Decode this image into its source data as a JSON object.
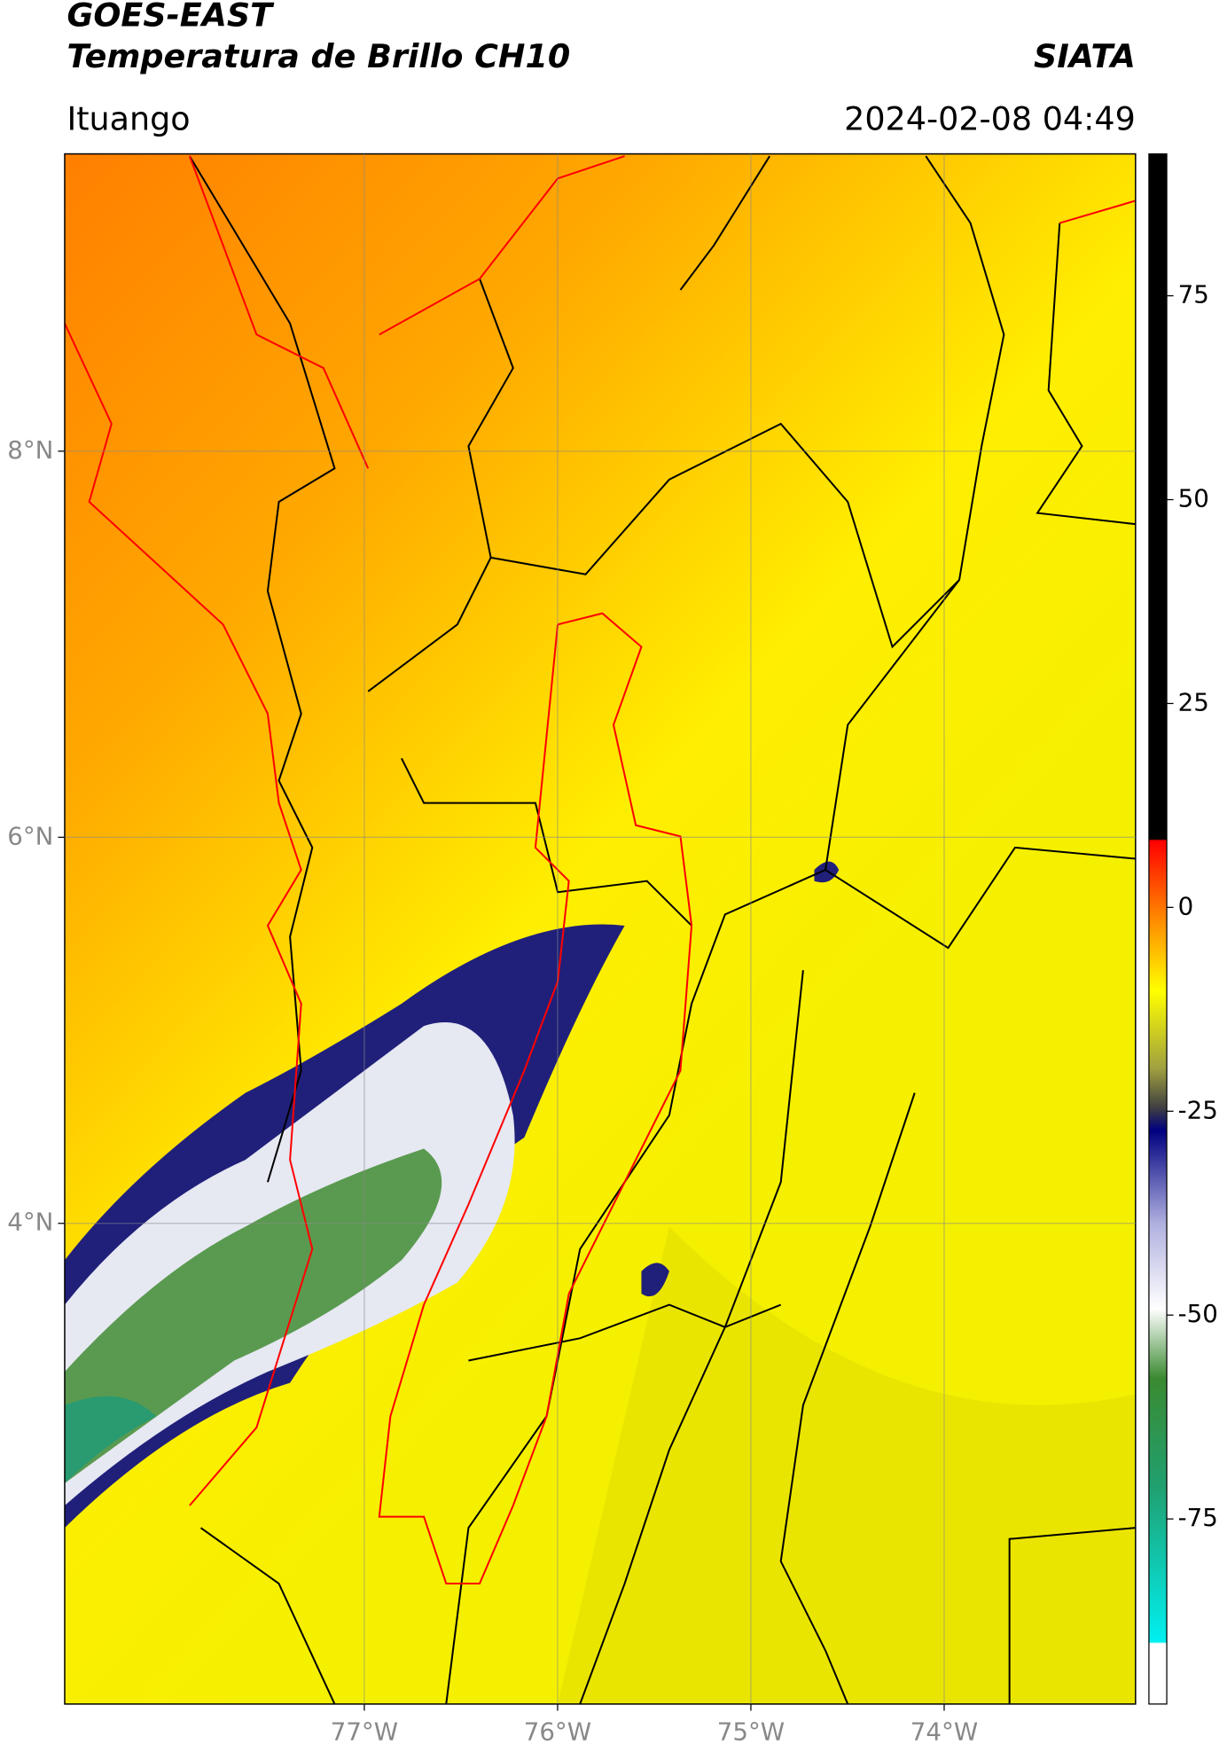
{
  "header": {
    "title": "GOES-EAST",
    "subtitle": "Temperatura de Brillo CH10",
    "brand": "SIATA",
    "location": "Ituango",
    "datetime": "2024-02-08 04:49"
  },
  "map": {
    "xlim": [
      -78.55,
      -73.01
    ],
    "ylim": [
      1.51,
      9.54
    ],
    "xticks": [
      {
        "value": -77,
        "label": "77°W"
      },
      {
        "value": -76,
        "label": "76°W"
      },
      {
        "value": -75,
        "label": "75°W"
      },
      {
        "value": -74,
        "label": "74°W"
      }
    ],
    "yticks": [
      {
        "value": 8,
        "label": "8°N"
      },
      {
        "value": 6,
        "label": "6°N"
      },
      {
        "value": 4,
        "label": "4°N"
      }
    ]
  },
  "colorbar": {
    "lim": [
      -97.7,
      92.4
    ],
    "ticks": [
      75,
      50,
      25,
      0,
      -25,
      -50,
      -75
    ]
  }
}
